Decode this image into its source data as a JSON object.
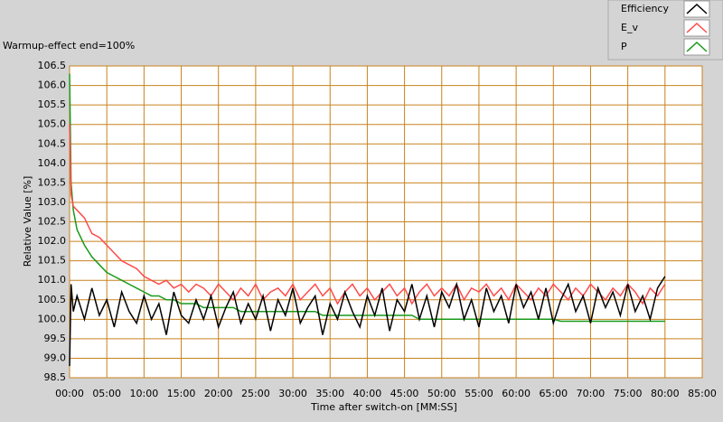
{
  "chart_data": {
    "type": "line",
    "title": "Warmup-effect end=100%",
    "x_label": "Time after switch-on [MM:SS]",
    "y_label": "Relative Value [%]",
    "x": [
      0,
      0.2,
      0.5,
      1,
      2,
      3,
      4,
      5,
      6,
      7,
      8,
      9,
      10,
      11,
      12,
      13,
      14,
      15,
      16,
      17,
      18,
      19,
      20,
      21,
      22,
      23,
      24,
      25,
      26,
      27,
      28,
      29,
      30,
      31,
      32,
      33,
      34,
      35,
      36,
      37,
      38,
      39,
      40,
      41,
      42,
      43,
      44,
      45,
      46,
      47,
      48,
      49,
      50,
      51,
      52,
      53,
      54,
      55,
      56,
      57,
      58,
      59,
      60,
      61,
      62,
      63,
      64,
      65,
      66,
      67,
      68,
      69,
      70,
      71,
      72,
      73,
      74,
      75,
      76,
      77,
      78,
      79,
      80
    ],
    "series": [
      {
        "name": "Efficiency",
        "color": "#000000",
        "values": [
          98.8,
          100.9,
          100.2,
          100.6,
          100.0,
          100.8,
          100.1,
          100.5,
          99.8,
          100.7,
          100.2,
          99.9,
          100.6,
          100.0,
          100.4,
          99.6,
          100.7,
          100.1,
          99.9,
          100.5,
          100.0,
          100.6,
          99.8,
          100.3,
          100.7,
          99.9,
          100.4,
          100.0,
          100.6,
          99.7,
          100.5,
          100.1,
          100.8,
          99.9,
          100.3,
          100.6,
          99.6,
          100.4,
          100.0,
          100.7,
          100.2,
          99.8,
          100.6,
          100.1,
          100.8,
          99.7,
          100.5,
          100.2,
          100.9,
          100.0,
          100.6,
          99.8,
          100.7,
          100.3,
          100.9,
          100.0,
          100.5,
          99.8,
          100.8,
          100.2,
          100.6,
          99.9,
          100.9,
          100.3,
          100.7,
          100.0,
          100.8,
          99.9,
          100.5,
          100.9,
          100.2,
          100.6,
          99.9,
          100.8,
          100.3,
          100.7,
          100.1,
          100.9,
          100.2,
          100.6,
          100.0,
          100.8,
          101.1
        ]
      },
      {
        "name": "E_v",
        "color": "#ff4b4b",
        "values": [
          105.0,
          103.2,
          102.9,
          102.8,
          102.6,
          102.2,
          102.1,
          101.9,
          101.7,
          101.5,
          101.4,
          101.3,
          101.1,
          101.0,
          100.9,
          101.0,
          100.8,
          100.9,
          100.7,
          100.9,
          100.8,
          100.6,
          100.9,
          100.7,
          100.5,
          100.8,
          100.6,
          100.9,
          100.5,
          100.7,
          100.8,
          100.6,
          100.9,
          100.5,
          100.7,
          100.9,
          100.6,
          100.8,
          100.4,
          100.7,
          100.9,
          100.6,
          100.8,
          100.5,
          100.7,
          100.9,
          100.6,
          100.8,
          100.4,
          100.7,
          100.9,
          100.6,
          100.8,
          100.6,
          100.9,
          100.5,
          100.8,
          100.7,
          100.9,
          100.6,
          100.8,
          100.5,
          100.9,
          100.7,
          100.5,
          100.8,
          100.6,
          100.9,
          100.7,
          100.5,
          100.8,
          100.6,
          100.9,
          100.7,
          100.5,
          100.8,
          100.6,
          100.9,
          100.7,
          100.4,
          100.8,
          100.6,
          100.9
        ]
      },
      {
        "name": "P",
        "color": "#1a9a1a",
        "values": [
          106.3,
          103.5,
          102.8,
          102.3,
          101.9,
          101.6,
          101.4,
          101.2,
          101.1,
          101.0,
          100.9,
          100.8,
          100.7,
          100.6,
          100.6,
          100.5,
          100.5,
          100.4,
          100.4,
          100.4,
          100.3,
          100.3,
          100.3,
          100.3,
          100.3,
          100.2,
          100.2,
          100.2,
          100.2,
          100.2,
          100.2,
          100.2,
          100.2,
          100.2,
          100.2,
          100.2,
          100.1,
          100.1,
          100.1,
          100.1,
          100.1,
          100.1,
          100.1,
          100.1,
          100.1,
          100.1,
          100.1,
          100.1,
          100.1,
          100.0,
          100.0,
          100.0,
          100.0,
          100.0,
          100.0,
          100.0,
          100.0,
          100.0,
          100.0,
          100.0,
          100.0,
          100.0,
          100.0,
          100.0,
          100.0,
          100.0,
          100.0,
          100.0,
          99.95,
          99.95,
          99.95,
          99.95,
          99.95,
          99.95,
          99.95,
          99.95,
          99.95,
          99.95,
          99.95,
          99.95,
          99.95,
          99.95,
          99.95
        ]
      }
    ],
    "xlim": [
      0,
      85
    ],
    "xticks": [
      {
        "value": 0,
        "label": "00:00"
      },
      {
        "value": 5,
        "label": "05:00"
      },
      {
        "value": 10,
        "label": "10:00"
      },
      {
        "value": 15,
        "label": "15:00"
      },
      {
        "value": 20,
        "label": "20:00"
      },
      {
        "value": 25,
        "label": "25:00"
      },
      {
        "value": 30,
        "label": "30:00"
      },
      {
        "value": 35,
        "label": "35:00"
      },
      {
        "value": 40,
        "label": "40:00"
      },
      {
        "value": 45,
        "label": "45:00"
      },
      {
        "value": 50,
        "label": "50:00"
      },
      {
        "value": 55,
        "label": "55:00"
      },
      {
        "value": 60,
        "label": "60:00"
      },
      {
        "value": 65,
        "label": "65:00"
      },
      {
        "value": 70,
        "label": "70:00"
      },
      {
        "value": 75,
        "label": "75:00"
      },
      {
        "value": 80,
        "label": "80:00"
      },
      {
        "value": 85,
        "label": "85:00"
      }
    ],
    "ylim": [
      98.5,
      106.5
    ],
    "yticks": [
      98.5,
      {
        "value": 99,
        "label": "99.0"
      },
      99.5,
      {
        "value": 100,
        "label": "100.0"
      },
      100.5,
      {
        "value": 101,
        "label": "101.0"
      },
      101.5,
      {
        "value": 102,
        "label": "102.0"
      },
      102.5,
      {
        "value": 103,
        "label": "103.0"
      },
      103.5,
      {
        "value": 104,
        "label": "104.0"
      },
      104.5,
      {
        "value": 105,
        "label": "105.0"
      },
      105.5,
      {
        "value": 106,
        "label": "106.0"
      },
      106.5
    ],
    "grid": true,
    "grid_color": "#c8821e",
    "legend": "top-right"
  }
}
